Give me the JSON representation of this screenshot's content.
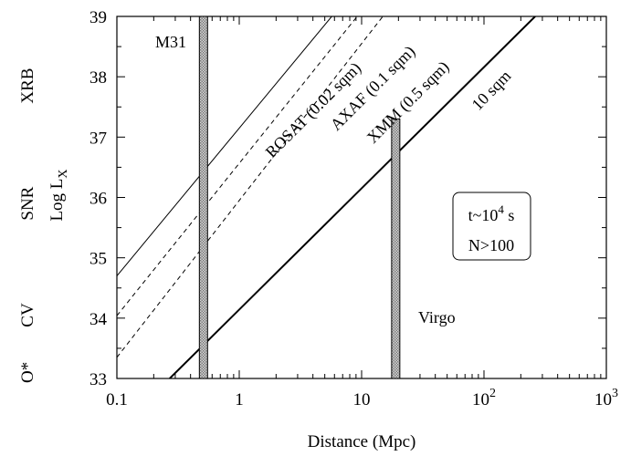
{
  "chart_data": {
    "type": "line",
    "xlabel": "Distance (Mpc)",
    "ylabel": "Log L",
    "ylabel_sub": "X",
    "xscale": "log",
    "xlim": [
      0.1,
      1000
    ],
    "ylim": [
      33,
      39
    ],
    "grid": false,
    "x_ticks": [
      {
        "value": 0.1,
        "label": "0.1"
      },
      {
        "value": 1,
        "label": "1"
      },
      {
        "value": 10,
        "label": "10"
      },
      {
        "value": 100,
        "label": "10",
        "sup": "2"
      },
      {
        "value": 1000,
        "label": "10",
        "sup": "3"
      }
    ],
    "y_ticks": [
      {
        "value": 33,
        "label": "33"
      },
      {
        "value": 34,
        "label": "34"
      },
      {
        "value": 35,
        "label": "35"
      },
      {
        "value": 36,
        "label": "36"
      },
      {
        "value": 37,
        "label": "37"
      },
      {
        "value": 38,
        "label": "38"
      },
      {
        "value": 39,
        "label": "39"
      }
    ],
    "series": [
      {
        "name": "ROSAT (0.02 sqm)",
        "style": "solid",
        "width": 1,
        "x": [
          0.1,
          5.7
        ],
        "y": [
          34.7,
          39
        ]
      },
      {
        "name": "AXAF (0.1 sqm)",
        "style": "dashed",
        "width": 1,
        "x": [
          0.1,
          9.2
        ],
        "y": [
          34.04,
          39
        ]
      },
      {
        "name": "XMM (0.5 sqm)",
        "style": "dashed",
        "width": 1,
        "x": [
          0.1,
          14.9
        ],
        "y": [
          33.35,
          39
        ]
      },
      {
        "name": "10 sqm",
        "style": "solid",
        "width": 2,
        "x": [
          0.27,
          262
        ],
        "y": [
          33,
          39
        ]
      }
    ],
    "bands": [
      {
        "name": "M31",
        "x": 0.51,
        "y_from": 33,
        "y_to": 39
      },
      {
        "name": "Virgo",
        "x": 19,
        "y_from": 33,
        "y_to": 37.3
      }
    ],
    "legend_box": {
      "line1": "t~10",
      "line1_sup": "4",
      "line1_suffix": " s",
      "line2": "N>100"
    },
    "source_classes": [
      {
        "label": "XRB",
        "y": 37.85
      },
      {
        "label": "SNR",
        "y": 35.9
      },
      {
        "label": "CV",
        "y": 34.05
      },
      {
        "label": "O*",
        "y": 33.1
      }
    ]
  }
}
